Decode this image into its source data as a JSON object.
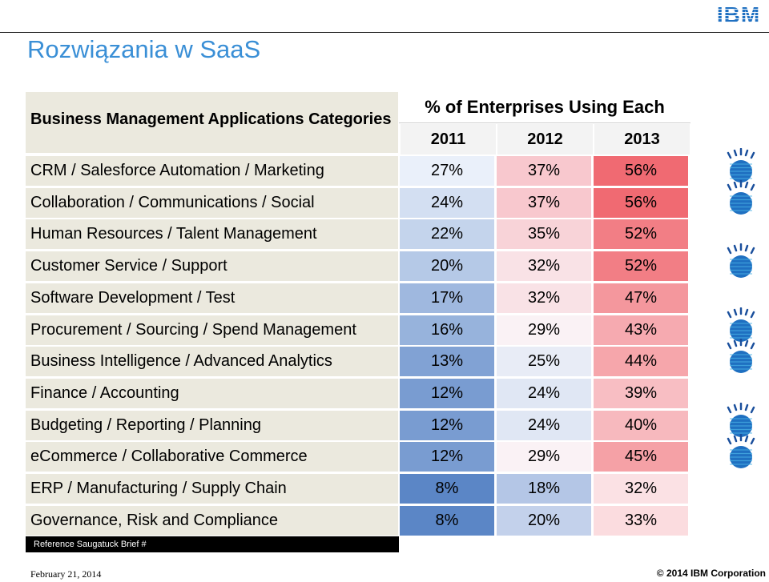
{
  "slide": {
    "title": "Rozwiązania w SaaS",
    "logo_text": "IBM"
  },
  "table": {
    "category_header": "Business Management Applications Categories",
    "metric_header": "% of Enterprises Using Each",
    "years": [
      "2011",
      "2012",
      "2013"
    ],
    "rows": [
      {
        "label": "CRM / Salesforce Automation / Marketing",
        "v2011": "27%",
        "v2012": "37%",
        "v2013": "56%",
        "has_icon": true
      },
      {
        "label": "Collaboration / Communications / Social",
        "v2011": "24%",
        "v2012": "37%",
        "v2013": "56%",
        "has_icon": true
      },
      {
        "label": "Human Resources / Talent Management",
        "v2011": "22%",
        "v2012": "35%",
        "v2013": "52%",
        "has_icon": false
      },
      {
        "label": "Customer Service / Support",
        "v2011": "20%",
        "v2012": "32%",
        "v2013": "52%",
        "has_icon": true
      },
      {
        "label": "Software Development / Test",
        "v2011": "17%",
        "v2012": "32%",
        "v2013": "47%",
        "has_icon": false
      },
      {
        "label": "Procurement / Sourcing / Spend Management",
        "v2011": "16%",
        "v2012": "29%",
        "v2013": "43%",
        "has_icon": true
      },
      {
        "label": "Business Intelligence / Advanced Analytics",
        "v2011": "13%",
        "v2012": "25%",
        "v2013": "44%",
        "has_icon": true
      },
      {
        "label": "Finance / Accounting",
        "v2011": "12%",
        "v2012": "24%",
        "v2013": "39%",
        "has_icon": false
      },
      {
        "label": "Budgeting / Reporting / Planning",
        "v2011": "12%",
        "v2012": "24%",
        "v2013": "40%",
        "has_icon": true
      },
      {
        "label": "eCommerce / Collaborative Commerce",
        "v2011": "12%",
        "v2012": "29%",
        "v2013": "45%",
        "has_icon": true
      },
      {
        "label": "ERP / Manufacturing / Supply Chain",
        "v2011": "8%",
        "v2012": "18%",
        "v2013": "32%",
        "has_icon": false
      },
      {
        "label": "Governance, Risk and Compliance",
        "v2011": "8%",
        "v2012": "20%",
        "v2013": "33%",
        "has_icon": false
      }
    ]
  },
  "reference": "Reference Saugatuck Brief #",
  "footer": {
    "date": "February 21, 2014",
    "copyright": "© 2014 IBM Corporation"
  },
  "colors": {
    "title": "#3a8fd6",
    "label_bg": "#ebe9de",
    "low_blue": "#5b86c6",
    "high_red": "#f06a72",
    "icon_blue": "#1f70c1"
  }
}
